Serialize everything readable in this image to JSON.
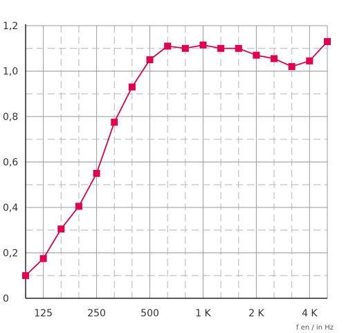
{
  "chart_data": {
    "type": "line",
    "title": "",
    "xlabel": "f en / in Hz",
    "ylabel": "",
    "x": [
      "100",
      "125",
      "160",
      "200",
      "250",
      "315",
      "400",
      "500",
      "630",
      "800",
      "1K",
      "1.25K",
      "1.6K",
      "2K",
      "2.5K",
      "3.15K",
      "4K",
      "5K"
    ],
    "x_tick_labels": [
      {
        "index": 1,
        "label": "125"
      },
      {
        "index": 4,
        "label": "250"
      },
      {
        "index": 7,
        "label": "500"
      },
      {
        "index": 10,
        "label": "1 K"
      },
      {
        "index": 13,
        "label": "2 K"
      },
      {
        "index": 16,
        "label": "4 K"
      }
    ],
    "series": [
      {
        "values": [
          0.1,
          0.175,
          0.305,
          0.405,
          0.55,
          0.775,
          0.93,
          1.05,
          1.11,
          1.1,
          1.115,
          1.1,
          1.1,
          1.07,
          1.055,
          1.02,
          1.045,
          1.13
        ]
      }
    ],
    "ylim": [
      0,
      1.2
    ],
    "y_ticks": [
      {
        "value": 0,
        "label": "0"
      },
      {
        "value": 0.2,
        "label": "0,2"
      },
      {
        "value": 0.4,
        "label": "0,4"
      },
      {
        "value": 0.6,
        "label": "0,6"
      },
      {
        "value": 0.8,
        "label": "0,8"
      },
      {
        "value": 1.0,
        "label": "1,0"
      },
      {
        "value": 1.2,
        "label": "1,2"
      }
    ],
    "grid": true,
    "colors": {
      "line": "#e0004d",
      "marker": "#e0004d",
      "grid_major": "#9a9a9a",
      "grid_minor": "#b5b5b5",
      "axis": "#222222"
    }
  }
}
